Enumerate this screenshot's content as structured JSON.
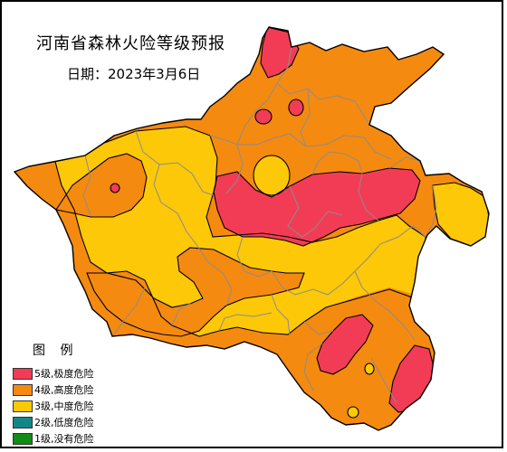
{
  "title": "河南省森林火险等级预报",
  "date": "日期：2023年3月6日",
  "legend": {
    "title": "图 例",
    "items": [
      {
        "label": "5级,极度危险",
        "color": "#f23c55",
        "level": 5
      },
      {
        "label": "4级,高度危险",
        "color": "#f58a10",
        "level": 4
      },
      {
        "label": "3级,中度危险",
        "color": "#fcc807",
        "level": 3
      },
      {
        "label": "2级,低度危险",
        "color": "#14868a",
        "level": 2
      },
      {
        "label": "1级,没有危险",
        "color": "#118c16",
        "level": 1
      }
    ]
  },
  "colors": {
    "boundary": "#8c8c8c",
    "outline": "#000000"
  }
}
